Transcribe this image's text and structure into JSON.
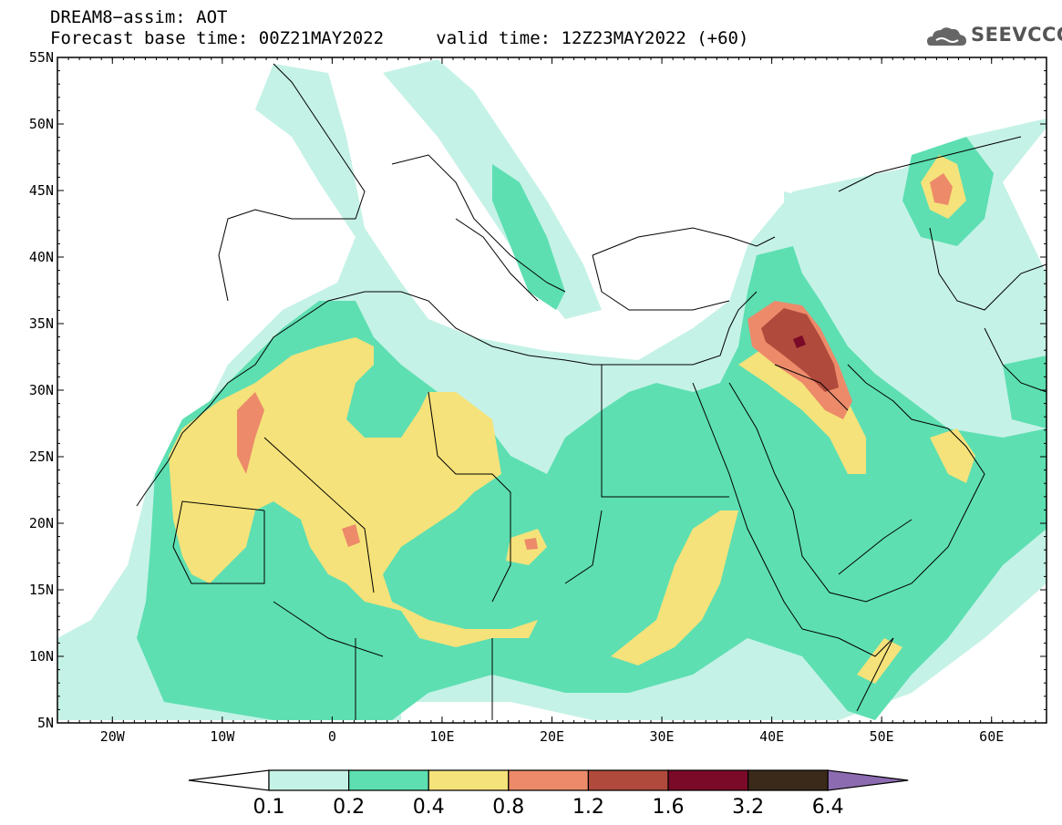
{
  "header": {
    "line1": "DREAM8−assim: AOT",
    "base_time_label": "Forecast base time: 00Z21MAY2022",
    "valid_time_label": "valid time: 12Z23MAY2022 (+60)"
  },
  "logo": {
    "text": "SEEVCCC",
    "icon": "cloud-icon"
  },
  "map": {
    "lon_range": [
      -25,
      65
    ],
    "lat_range": [
      5,
      55
    ],
    "lat_ticks": [
      "55N",
      "50N",
      "45N",
      "40N",
      "35N",
      "30N",
      "25N",
      "20N",
      "15N",
      "10N",
      "5N"
    ],
    "lon_ticks": [
      "20W",
      "10W",
      "0",
      "10E",
      "20E",
      "30E",
      "40E",
      "50E",
      "60E"
    ]
  },
  "colorbar": {
    "labels": [
      "0.1",
      "0.2",
      "0.4",
      "0.8",
      "1.2",
      "1.6",
      "3.2",
      "6.4"
    ],
    "colors": [
      "#c5f2e6",
      "#5ddfb2",
      "#f5e27a",
      "#ec8a6a",
      "#b04a3c",
      "#7a0a28",
      "#3b2a1a",
      "#8c6bb0"
    ]
  }
}
